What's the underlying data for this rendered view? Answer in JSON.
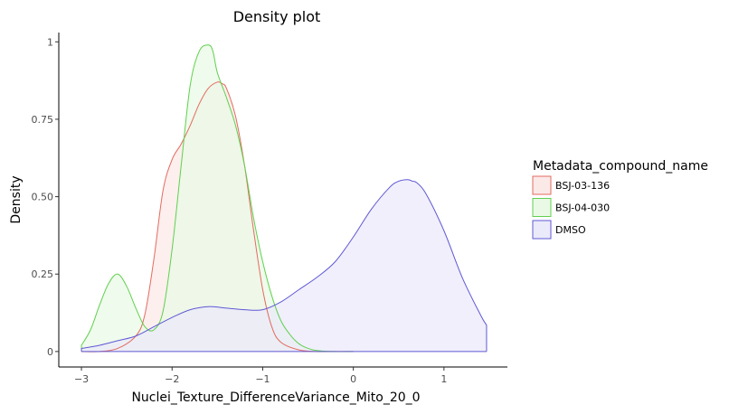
{
  "chart_data": {
    "type": "area",
    "title": "Density plot",
    "xlabel": "Nuclei_Texture_DifferenceVariance_Mito_20_0",
    "ylabel": "Density",
    "xlim": [
      -3.25,
      1.7
    ],
    "ylim": [
      -0.05,
      1.03
    ],
    "x_ticks": [
      -3,
      -2,
      -1,
      0,
      1
    ],
    "x_tick_labels": [
      "−3",
      "−2",
      "−1",
      "0",
      "1"
    ],
    "y_ticks": [
      0,
      0.25,
      0.5,
      0.75,
      1
    ],
    "y_tick_labels": [
      "0",
      "0.25",
      "0.50",
      "0.75",
      "1"
    ],
    "grid": false,
    "legend": {
      "title": "Metadata_compound_name",
      "placement": "right"
    },
    "series": [
      {
        "name": "BSJ-03-136",
        "color": "#e36b5f",
        "fill": "#fbe9e8",
        "x": [
          -3.0,
          -2.8,
          -2.6,
          -2.4,
          -2.3,
          -2.2,
          -2.1,
          -2.0,
          -1.9,
          -1.8,
          -1.7,
          -1.6,
          -1.5,
          -1.45,
          -1.4,
          -1.3,
          -1.2,
          -1.1,
          -1.0,
          -0.9,
          -0.8,
          -0.6,
          -0.4,
          -0.2,
          0.0
        ],
        "y": [
          0.0,
          0.0,
          0.01,
          0.05,
          0.12,
          0.3,
          0.52,
          0.62,
          0.67,
          0.73,
          0.8,
          0.85,
          0.87,
          0.865,
          0.85,
          0.76,
          0.6,
          0.39,
          0.2,
          0.08,
          0.03,
          0.005,
          0.0,
          0.0,
          0.0
        ]
      },
      {
        "name": "BSJ-04-030",
        "color": "#61d04f",
        "fill": "#e9f9e6",
        "x": [
          -3.0,
          -2.9,
          -2.8,
          -2.7,
          -2.6,
          -2.5,
          -2.4,
          -2.3,
          -2.2,
          -2.1,
          -2.0,
          -1.9,
          -1.8,
          -1.7,
          -1.6,
          -1.55,
          -1.5,
          -1.4,
          -1.3,
          -1.2,
          -1.1,
          -1.0,
          -0.9,
          -0.8,
          -0.7,
          -0.6,
          -0.5,
          -0.4,
          -0.2,
          0.0
        ],
        "y": [
          0.02,
          0.07,
          0.15,
          0.22,
          0.25,
          0.21,
          0.14,
          0.08,
          0.07,
          0.13,
          0.33,
          0.6,
          0.86,
          0.97,
          0.99,
          0.97,
          0.9,
          0.82,
          0.73,
          0.6,
          0.43,
          0.29,
          0.18,
          0.1,
          0.055,
          0.025,
          0.01,
          0.003,
          0.0,
          0.0
        ]
      },
      {
        "name": "DMSO",
        "color": "#6059d4",
        "fill": "#ebeafa",
        "x": [
          -3.0,
          -2.8,
          -2.6,
          -2.4,
          -2.2,
          -2.0,
          -1.8,
          -1.6,
          -1.4,
          -1.2,
          -1.0,
          -0.8,
          -0.6,
          -0.4,
          -0.2,
          0.0,
          0.2,
          0.4,
          0.5,
          0.6,
          0.65,
          0.7,
          0.8,
          1.0,
          1.2,
          1.4,
          1.47
        ],
        "y": [
          0.01,
          0.02,
          0.035,
          0.05,
          0.08,
          0.11,
          0.135,
          0.145,
          0.14,
          0.135,
          0.135,
          0.16,
          0.2,
          0.24,
          0.29,
          0.37,
          0.46,
          0.53,
          0.55,
          0.555,
          0.55,
          0.545,
          0.51,
          0.39,
          0.24,
          0.12,
          0.085
        ]
      }
    ]
  }
}
